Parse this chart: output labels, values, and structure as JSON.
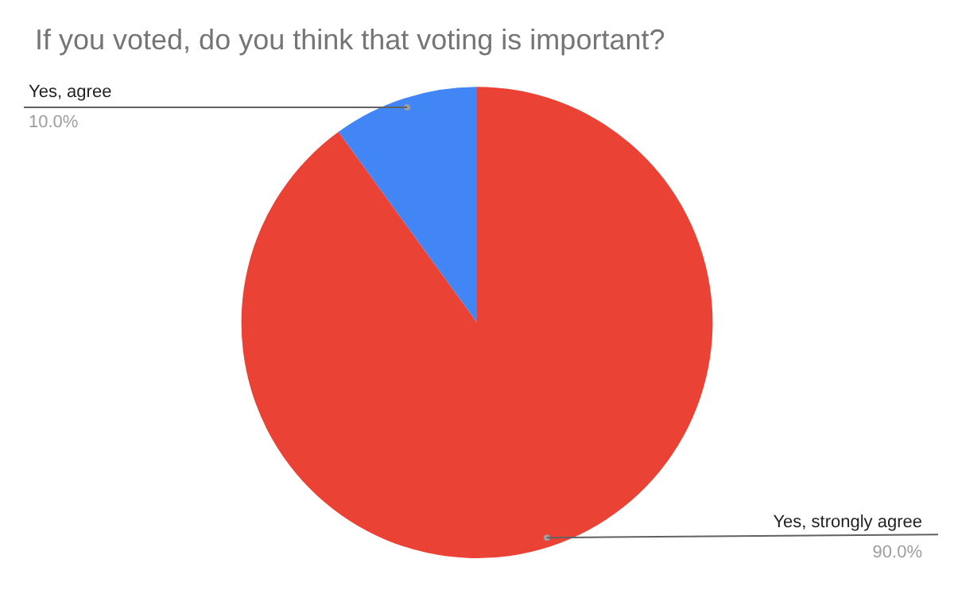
{
  "chart_data": {
    "type": "pie",
    "title": "If you voted, do you think that voting is important?",
    "categories": [
      "Yes, strongly agree",
      "Yes, agree"
    ],
    "values": [
      90,
      10
    ],
    "colors": [
      "#ea4335",
      "#4285f4"
    ],
    "value_labels": [
      "90.0%",
      "10.0%"
    ],
    "legend": false
  }
}
